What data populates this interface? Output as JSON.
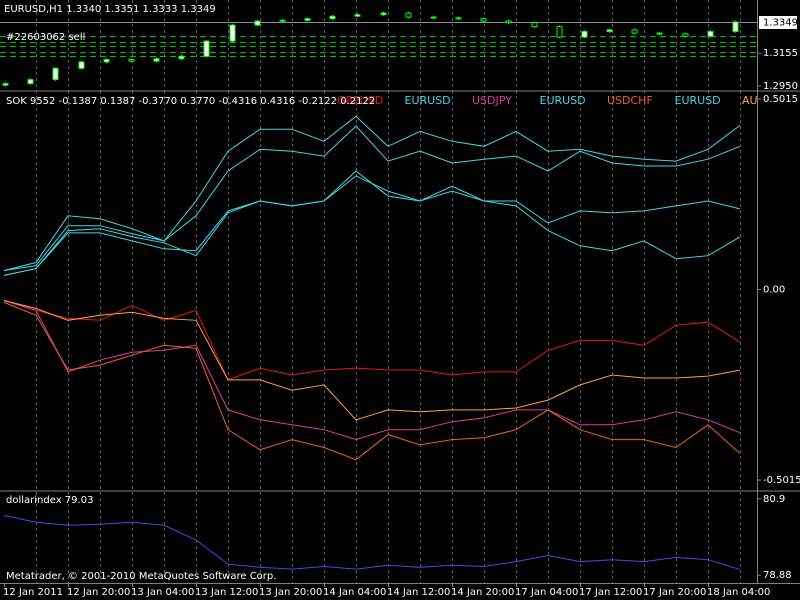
{
  "chart_data": [
    {
      "type": "candlestick",
      "title": "EURUSD,H1  1.3340 1.3351 1.3333 1.3349",
      "annotation": "#22603062 sell",
      "color": "#00ff00",
      "open": [
        1.2955,
        1.2965,
        1.299,
        1.306,
        1.31,
        1.3115,
        1.3105,
        1.312,
        1.3135,
        1.323,
        1.333,
        1.3355,
        1.336,
        1.337,
        1.3385,
        1.3395,
        1.3405,
        1.338,
        1.3375,
        1.337,
        1.3355,
        1.3345,
        1.332,
        1.3255,
        1.329,
        1.33,
        1.328,
        1.3275,
        1.326,
        1.329
      ],
      "high": [
        1.2973,
        1.2998,
        1.3068,
        1.3108,
        1.3123,
        1.3123,
        1.3128,
        1.3143,
        1.3238,
        1.3338,
        1.3363,
        1.3368,
        1.3378,
        1.3393,
        1.3403,
        1.3413,
        1.3413,
        1.3388,
        1.3383,
        1.3378,
        1.3363,
        1.3353,
        1.3328,
        1.3298,
        1.3308,
        1.3308,
        1.3288,
        1.3283,
        1.3298,
        1.3357
      ],
      "low": [
        1.2947,
        1.2957,
        1.2982,
        1.3052,
        1.3092,
        1.3097,
        1.3097,
        1.3112,
        1.3127,
        1.3222,
        1.3322,
        1.3347,
        1.3352,
        1.3362,
        1.3377,
        1.3387,
        1.3372,
        1.3367,
        1.3362,
        1.3347,
        1.3337,
        1.3312,
        1.3247,
        1.3247,
        1.3282,
        1.3272,
        1.3267,
        1.3252,
        1.3252,
        1.3282
      ],
      "close": [
        1.2965,
        1.299,
        1.306,
        1.31,
        1.3115,
        1.3105,
        1.312,
        1.3135,
        1.323,
        1.333,
        1.3355,
        1.336,
        1.337,
        1.3385,
        1.3395,
        1.3405,
        1.338,
        1.3375,
        1.337,
        1.3355,
        1.3345,
        1.332,
        1.3255,
        1.329,
        1.33,
        1.328,
        1.3275,
        1.326,
        1.329,
        1.3349
      ],
      "levels": [
        1.3262,
        1.3224,
        1.3199,
        1.3162,
        1.3137
      ],
      "levels_color": "#00c000",
      "last_price": 1.3349,
      "ylim": [
        1.2925,
        1.3474
      ],
      "yticks": [
        1.3155,
        {
          "value": 1.295,
          "label": "1.2950"
        }
      ]
    },
    {
      "type": "line",
      "title": "SOK 9552 -0.1387 0.1387 -0.3770 0.3770 -0.4316 0.4316 -0.2122 0.2122",
      "series": [
        {
          "name": "GBPUSD",
          "color": "#e01818",
          "values": [
            -0.029,
            -0.055,
            -0.076,
            -0.081,
            -0.042,
            -0.081,
            -0.055,
            -0.238,
            -0.207,
            -0.225,
            -0.212,
            -0.207,
            -0.212,
            -0.212,
            -0.225,
            -0.217,
            -0.217,
            -0.16,
            -0.134,
            -0.134,
            -0.147,
            -0.094,
            -0.086,
            -0.1387
          ]
        },
        {
          "name": "EURUSD",
          "color": "#40d8e8",
          "values": [
            0.037,
            0.055,
            0.155,
            0.16,
            0.139,
            0.123,
            0.089,
            0.202,
            0.233,
            0.22,
            0.233,
            0.299,
            0.259,
            0.233,
            0.272,
            0.233,
            0.22,
            0.155,
            0.115,
            0.102,
            0.128,
            0.081,
            0.089,
            0.1387
          ]
        },
        {
          "name": "USDJPY",
          "color": "#e03c98",
          "values": [
            -0.029,
            -0.055,
            -0.217,
            -0.186,
            -0.165,
            -0.16,
            -0.147,
            -0.317,
            -0.343,
            -0.356,
            -0.369,
            -0.395,
            -0.369,
            -0.369,
            -0.348,
            -0.338,
            -0.317,
            -0.317,
            -0.356,
            -0.356,
            -0.343,
            -0.322,
            -0.343,
            -0.377
          ]
        },
        {
          "name": "EURUSD",
          "color": "#40d8e8",
          "values": [
            0.05,
            0.063,
            0.168,
            0.168,
            0.147,
            0.128,
            0.194,
            0.312,
            0.369,
            0.364,
            0.351,
            0.43,
            0.338,
            0.364,
            0.333,
            0.343,
            0.351,
            0.312,
            0.364,
            0.333,
            0.325,
            0.325,
            0.343,
            0.377
          ]
        },
        {
          "name": "USDCHF",
          "color": "#e8602c",
          "values": [
            -0.034,
            -0.068,
            -0.212,
            -0.199,
            -0.173,
            -0.147,
            -0.155,
            -0.369,
            -0.422,
            -0.395,
            -0.416,
            -0.448,
            -0.382,
            -0.409,
            -0.395,
            -0.39,
            -0.369,
            -0.317,
            -0.369,
            -0.395,
            -0.395,
            -0.416,
            -0.356,
            -0.4316
          ]
        },
        {
          "name": "EURUSD",
          "color": "#40d8e8",
          "values": [
            0.05,
            0.071,
            0.194,
            0.186,
            0.16,
            0.128,
            0.233,
            0.364,
            0.422,
            0.422,
            0.39,
            0.456,
            0.377,
            0.416,
            0.39,
            0.377,
            0.416,
            0.364,
            0.369,
            0.351,
            0.343,
            0.338,
            0.369,
            0.4316
          ]
        },
        {
          "name": "AU",
          "color": "#ffa040",
          "values": [
            -0.029,
            -0.05,
            -0.081,
            -0.068,
            -0.06,
            -0.076,
            -0.081,
            -0.238,
            -0.238,
            -0.265,
            -0.251,
            -0.343,
            -0.317,
            -0.322,
            -0.317,
            -0.317,
            -0.312,
            -0.291,
            -0.251,
            -0.225,
            -0.233,
            -0.233,
            -0.228,
            -0.2122
          ]
        },
        {
          "color": "#40d8e8",
          "values": [
            0.037,
            0.055,
            0.149,
            0.149,
            0.128,
            0.107,
            0.102,
            0.207,
            0.233,
            0.22,
            0.233,
            0.312,
            0.246,
            0.233,
            0.259,
            0.233,
            0.233,
            0.175,
            0.207,
            0.202,
            0.207,
            0.22,
            0.233,
            0.2122
          ]
        }
      ],
      "ylim": [
        -0.5251,
        0.5172
      ],
      "yticks": [
        0.5015,
        {
          "value": 0,
          "label": "0.00"
        },
        -0.5015
      ]
    },
    {
      "type": "line",
      "title": "dollarindex 79.03",
      "footer": "Metatrader, © 2001-2010 MetaQuotes Software Corp.",
      "series": [
        {
          "color": "#3a50e8",
          "values": [
            80.46,
            80.28,
            80.2,
            80.23,
            80.28,
            80.2,
            79.81,
            79.17,
            79.09,
            79.04,
            79.11,
            79.04,
            79.14,
            79.09,
            79.14,
            79.11,
            79.24,
            79.4,
            79.24,
            79.29,
            79.24,
            79.35,
            79.29,
            79.03
          ]
        }
      ],
      "ylim": [
        78.699,
        81.055
      ],
      "yticks": [
        80.9,
        78.88
      ],
      "xticks": [
        "12 Jan 2011",
        "12 Jan 20:00",
        "13 Jan 04:00",
        "13 Jan 12:00",
        "13 Jan 20:00",
        "14 Jan 04:00",
        "14 Jan 12:00",
        "14 Jan 20:00",
        "17 Jan 04:00",
        "17 Jan 12:00",
        "17 Jan 20:00",
        "18 Jan 04:00"
      ]
    }
  ]
}
